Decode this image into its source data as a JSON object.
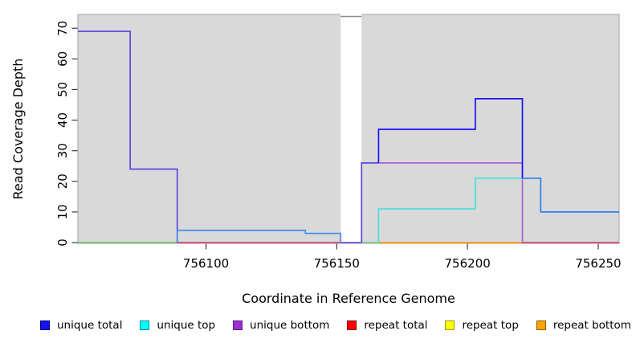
{
  "chart_data": {
    "type": "line",
    "subtype": "step-coverage",
    "xlabel": "Coordinate in Reference Genome",
    "ylabel": "Read Coverage Depth",
    "xlim": [
      756051,
      756258
    ],
    "ylim": [
      0,
      74.5
    ],
    "x_ticks": [
      756100,
      756150,
      756200,
      756250
    ],
    "y_ticks": [
      0,
      10,
      20,
      30,
      40,
      50,
      60,
      70
    ],
    "panel_bg": "#d9d9d9",
    "panel_border": "#b3b3b3",
    "tick_color": "#3a3a3a",
    "gap_region": {
      "x_start": 756151.5,
      "x_end": 756159.5,
      "fill": "#ffffff",
      "cap_color": "#8c8c8c"
    },
    "grid": false,
    "legend_position": "bottom",
    "series": [
      {
        "name": "unique total",
        "color": "#0000FF",
        "steps": [
          [
            756051,
            69
          ],
          [
            756071,
            24
          ],
          [
            756089,
            4
          ],
          [
            756138,
            3
          ],
          [
            756151,
            0
          ],
          [
            756159,
            26
          ],
          [
            756166,
            37
          ],
          [
            756203,
            47
          ],
          [
            756221,
            21
          ],
          [
            756228,
            10
          ],
          [
            756258,
            10
          ]
        ]
      },
      {
        "name": "unique top",
        "color": "#00FFFF",
        "steps": [
          [
            756051,
            0
          ],
          [
            756166,
            11
          ],
          [
            756203,
            21
          ],
          [
            756221,
            0
          ],
          [
            756258,
            0
          ]
        ]
      },
      {
        "name": "unique bottom",
        "color": "#9932CC",
        "steps": [
          [
            756051,
            69
          ],
          [
            756071,
            24
          ],
          [
            756089,
            0
          ],
          [
            756159,
            26
          ],
          [
            756221,
            0
          ],
          [
            756258,
            0
          ]
        ]
      },
      {
        "name": "repeat total",
        "color": "#FF0000",
        "steps": [
          [
            756089,
            0
          ],
          [
            756151,
            0
          ],
          [
            756221,
            0
          ],
          [
            756258,
            0
          ]
        ]
      },
      {
        "name": "repeat top",
        "color": "#FFFF00",
        "steps": [
          [
            756051,
            0
          ],
          [
            756089,
            0
          ]
        ]
      },
      {
        "name": "repeat bottom",
        "color": "#FFA500",
        "steps": [
          [
            756159,
            0
          ],
          [
            756221,
            0
          ]
        ]
      }
    ],
    "render_segments": [
      {
        "id": "zero-green-left",
        "color": "#6fc26f",
        "points": [
          [
            756051,
            0
          ],
          [
            756089,
            0
          ]
        ]
      },
      {
        "id": "zero-pink-mid",
        "color": "#d4476e",
        "points": [
          [
            756089,
            0
          ],
          [
            756151.5,
            0
          ]
        ]
      },
      {
        "id": "zero-indigo-gap",
        "color": "#6a58e8",
        "points": [
          [
            756151.5,
            0
          ],
          [
            756159.5,
            0
          ]
        ]
      },
      {
        "id": "zero-teal-short",
        "color": "#7dc98f",
        "points": [
          [
            756159.5,
            0
          ],
          [
            756166,
            0
          ]
        ]
      },
      {
        "id": "zero-orange",
        "color": "#ff9800",
        "points": [
          [
            756166,
            0
          ],
          [
            756221,
            0
          ]
        ]
      },
      {
        "id": "zero-pink-right",
        "color": "#d4476e",
        "points": [
          [
            756221,
            0
          ],
          [
            756258,
            0
          ]
        ]
      },
      {
        "id": "indigo-left-steps",
        "color": "#5b48e0",
        "points": [
          [
            756051,
            69
          ],
          [
            756071,
            69
          ],
          [
            756071,
            24
          ],
          [
            756089,
            24
          ],
          [
            756089,
            0
          ]
        ]
      },
      {
        "id": "dodger-left-steps",
        "color": "#448cf0",
        "points": [
          [
            756089,
            0
          ],
          [
            756089,
            4
          ],
          [
            756138,
            4
          ],
          [
            756138,
            3
          ],
          [
            756151.5,
            3
          ],
          [
            756151.5,
            0
          ]
        ]
      },
      {
        "id": "indigo-gap-riser",
        "color": "#5b48e0",
        "points": [
          [
            756159.5,
            0
          ],
          [
            756159.5,
            26
          ],
          [
            756166,
            26
          ]
        ]
      },
      {
        "id": "purple-plateau",
        "color": "#a861d6",
        "points": [
          [
            756166,
            26
          ],
          [
            756221,
            26
          ],
          [
            756221,
            0
          ]
        ]
      },
      {
        "id": "cyan-steps",
        "color": "#45e0dc",
        "points": [
          [
            756166,
            0
          ],
          [
            756166,
            11
          ],
          [
            756203,
            11
          ],
          [
            756203,
            21
          ],
          [
            756221,
            21
          ]
        ]
      },
      {
        "id": "blue-steps",
        "color": "#1a12ff",
        "points": [
          [
            756166,
            26
          ],
          [
            756166,
            37
          ],
          [
            756203,
            37
          ],
          [
            756203,
            47
          ],
          [
            756221,
            47
          ],
          [
            756221,
            21
          ]
        ]
      },
      {
        "id": "dodger-right-steps",
        "color": "#2e7ef0",
        "points": [
          [
            756221,
            21
          ],
          [
            756228,
            21
          ],
          [
            756228,
            10
          ],
          [
            756258,
            10
          ]
        ]
      }
    ]
  },
  "legend": {
    "items": [
      {
        "label": "unique total",
        "fill": "#1414f0",
        "border": "#000080"
      },
      {
        "label": "unique top",
        "fill": "#00ffff",
        "border": "#008b8b"
      },
      {
        "label": "unique bottom",
        "fill": "#9a30d0",
        "border": "#5b1a8b"
      },
      {
        "label": "repeat total",
        "fill": "#ff0000",
        "border": "#8b0000"
      },
      {
        "label": "repeat top",
        "fill": "#ffff00",
        "border": "#9a9a00"
      },
      {
        "label": "repeat bottom",
        "fill": "#ffa500",
        "border": "#8b5a00"
      }
    ]
  }
}
